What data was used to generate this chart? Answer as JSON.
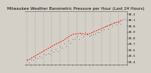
{
  "title": "Milwaukee Weather Barometric Pressure per Hour (Last 24 Hours)",
  "background_color": "#d4d0c8",
  "plot_bg_color": "#d4d0c8",
  "grid_color": "#888888",
  "pressure_raw": [
    29.42,
    29.4,
    29.44,
    29.43,
    29.48,
    29.46,
    29.5,
    29.49,
    29.52,
    29.51,
    29.55,
    29.53,
    29.58,
    29.57,
    29.62,
    29.6,
    29.65,
    29.63,
    29.7,
    29.68,
    29.74,
    29.72,
    29.78,
    29.76,
    29.83,
    29.8,
    29.87,
    29.85,
    29.88,
    29.86,
    29.85,
    29.84,
    29.88,
    29.87,
    29.92,
    29.9,
    29.95,
    29.93,
    29.98,
    29.96,
    30.02,
    30.0,
    30.05,
    30.03,
    30.08,
    30.06,
    30.1,
    30.09
  ],
  "trend_x": [
    0,
    2,
    4,
    6,
    8,
    10,
    12,
    14,
    16,
    18,
    20,
    22,
    24,
    26,
    28,
    30,
    32,
    34,
    36,
    38,
    40,
    42,
    44,
    46
  ],
  "trend_y": [
    29.42,
    29.46,
    29.5,
    29.54,
    29.58,
    29.62,
    29.66,
    29.7,
    29.73,
    29.77,
    29.82,
    29.86,
    29.87,
    29.88,
    29.86,
    29.87,
    29.9,
    29.93,
    29.96,
    29.99,
    30.02,
    30.05,
    30.07,
    30.1
  ],
  "ylim": [
    29.35,
    30.25
  ],
  "yticks": [
    29.4,
    29.5,
    29.6,
    29.7,
    29.8,
    29.9,
    30.0,
    30.1,
    30.2
  ],
  "ytick_labels": [
    "29.4",
    "29.5",
    "29.6",
    "29.7",
    "29.8",
    "29.9",
    "30.0",
    "30.1",
    "30.2"
  ],
  "xlim": [
    -1,
    48
  ],
  "scatter_color": "#111111",
  "trend_color": "#ff0000",
  "title_fontsize": 4.2,
  "tick_fontsize": 3.2,
  "marker_size": 0.8,
  "trend_linewidth": 0.7,
  "grid_positions": [
    0,
    4,
    8,
    12,
    16,
    20,
    24,
    28,
    32,
    36,
    40,
    44,
    48
  ]
}
